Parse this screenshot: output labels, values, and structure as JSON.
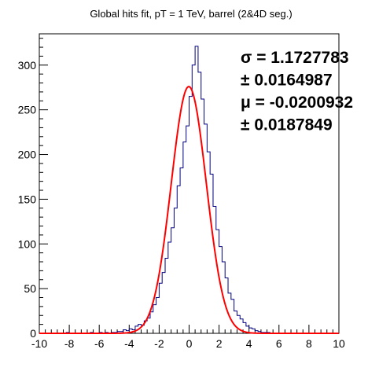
{
  "chart_data": {
    "type": "histogram",
    "title": "Global hits fit, pT = 1 TeV, barrel (2&4D seg.)",
    "xlabel": "",
    "ylabel": "",
    "xlim": [
      -10,
      10
    ],
    "ylim": [
      0,
      335
    ],
    "bin_width": 0.2,
    "x_ticks": [
      "-10",
      "-8",
      "-6",
      "-4",
      "-2",
      "0",
      "2",
      "4",
      "6",
      "8",
      "10"
    ],
    "x_tick_values": [
      -10,
      -8,
      -6,
      -4,
      -2,
      0,
      2,
      4,
      6,
      8,
      10
    ],
    "y_ticks": [
      "0",
      "50",
      "100",
      "150",
      "200",
      "250",
      "300"
    ],
    "y_tick_values": [
      0,
      50,
      100,
      150,
      200,
      250,
      300
    ],
    "histogram": {
      "name": "histogram",
      "color": "#000080",
      "bin_edges_start": -10,
      "counts": [
        0,
        0,
        0,
        0,
        0,
        0,
        0,
        0,
        0,
        1,
        0,
        0,
        0,
        0,
        0,
        0,
        0,
        1,
        0,
        0,
        1,
        0,
        1,
        0,
        1,
        1,
        2,
        2,
        4,
        3,
        5,
        4,
        8,
        10,
        9,
        14,
        17,
        24,
        32,
        40,
        56,
        68,
        84,
        102,
        118,
        140,
        165,
        185,
        214,
        232,
        265,
        300,
        321,
        292,
        262,
        234,
        203,
        178,
        142,
        116,
        97,
        80,
        62,
        45,
        38,
        25,
        20,
        16,
        12,
        8,
        6,
        5,
        3,
        2,
        1,
        1,
        1,
        0,
        0,
        0,
        0,
        0,
        0,
        0,
        0,
        0,
        0,
        0,
        0,
        0,
        0,
        0,
        0,
        0,
        0,
        0,
        0,
        0,
        0,
        0
      ]
    },
    "fit": {
      "name": "gaussian fit",
      "color": "#ff0000",
      "function": "gaussian",
      "amplitude": 276,
      "mean": -0.0200932,
      "sigma": 1.1727783,
      "x_range": [
        -10,
        10
      ]
    },
    "stats": [
      "σ = 1.1727783",
      "± 0.0164987",
      "μ = -0.0200932",
      "± 0.0187849"
    ],
    "grid": false
  }
}
